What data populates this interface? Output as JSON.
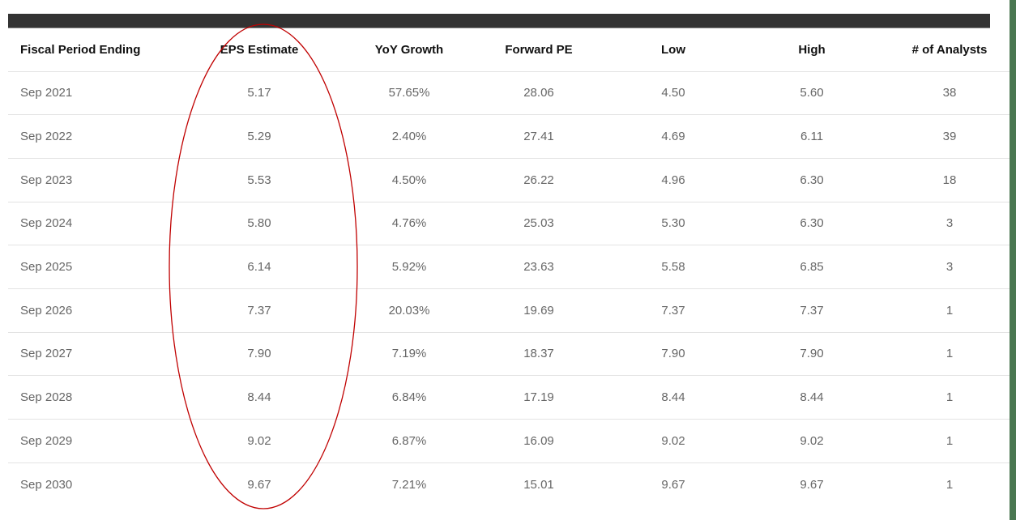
{
  "table": {
    "columns": [
      "Fiscal Period Ending",
      "EPS Estimate",
      "YoY Growth",
      "Forward PE",
      "Low",
      "High",
      "# of Analysts"
    ],
    "rows": [
      [
        "Sep 2021",
        "5.17",
        "57.65%",
        "28.06",
        "4.50",
        "5.60",
        "38"
      ],
      [
        "Sep 2022",
        "5.29",
        "2.40%",
        "27.41",
        "4.69",
        "6.11",
        "39"
      ],
      [
        "Sep 2023",
        "5.53",
        "4.50%",
        "26.22",
        "4.96",
        "6.30",
        "18"
      ],
      [
        "Sep 2024",
        "5.80",
        "4.76%",
        "25.03",
        "5.30",
        "6.30",
        "3"
      ],
      [
        "Sep 2025",
        "6.14",
        "5.92%",
        "23.63",
        "5.58",
        "6.85",
        "3"
      ],
      [
        "Sep 2026",
        "7.37",
        "20.03%",
        "19.69",
        "7.37",
        "7.37",
        "1"
      ],
      [
        "Sep 2027",
        "7.90",
        "7.19%",
        "18.37",
        "7.90",
        "7.90",
        "1"
      ],
      [
        "Sep 2028",
        "8.44",
        "6.84%",
        "17.19",
        "8.44",
        "8.44",
        "1"
      ],
      [
        "Sep 2029",
        "9.02",
        "6.87%",
        "16.09",
        "9.02",
        "9.02",
        "1"
      ],
      [
        "Sep 2030",
        "9.67",
        "7.21%",
        "15.01",
        "9.67",
        "9.67",
        "1"
      ]
    ]
  },
  "annotation": {
    "shape": "ellipse",
    "target_column": "EPS Estimate",
    "color": "#c00000"
  },
  "colors": {
    "header_bar": "#333333",
    "side_strip": "#4a7751",
    "row_divider": "#e3e3e3",
    "header_text": "#111111",
    "cell_text": "#666666"
  }
}
